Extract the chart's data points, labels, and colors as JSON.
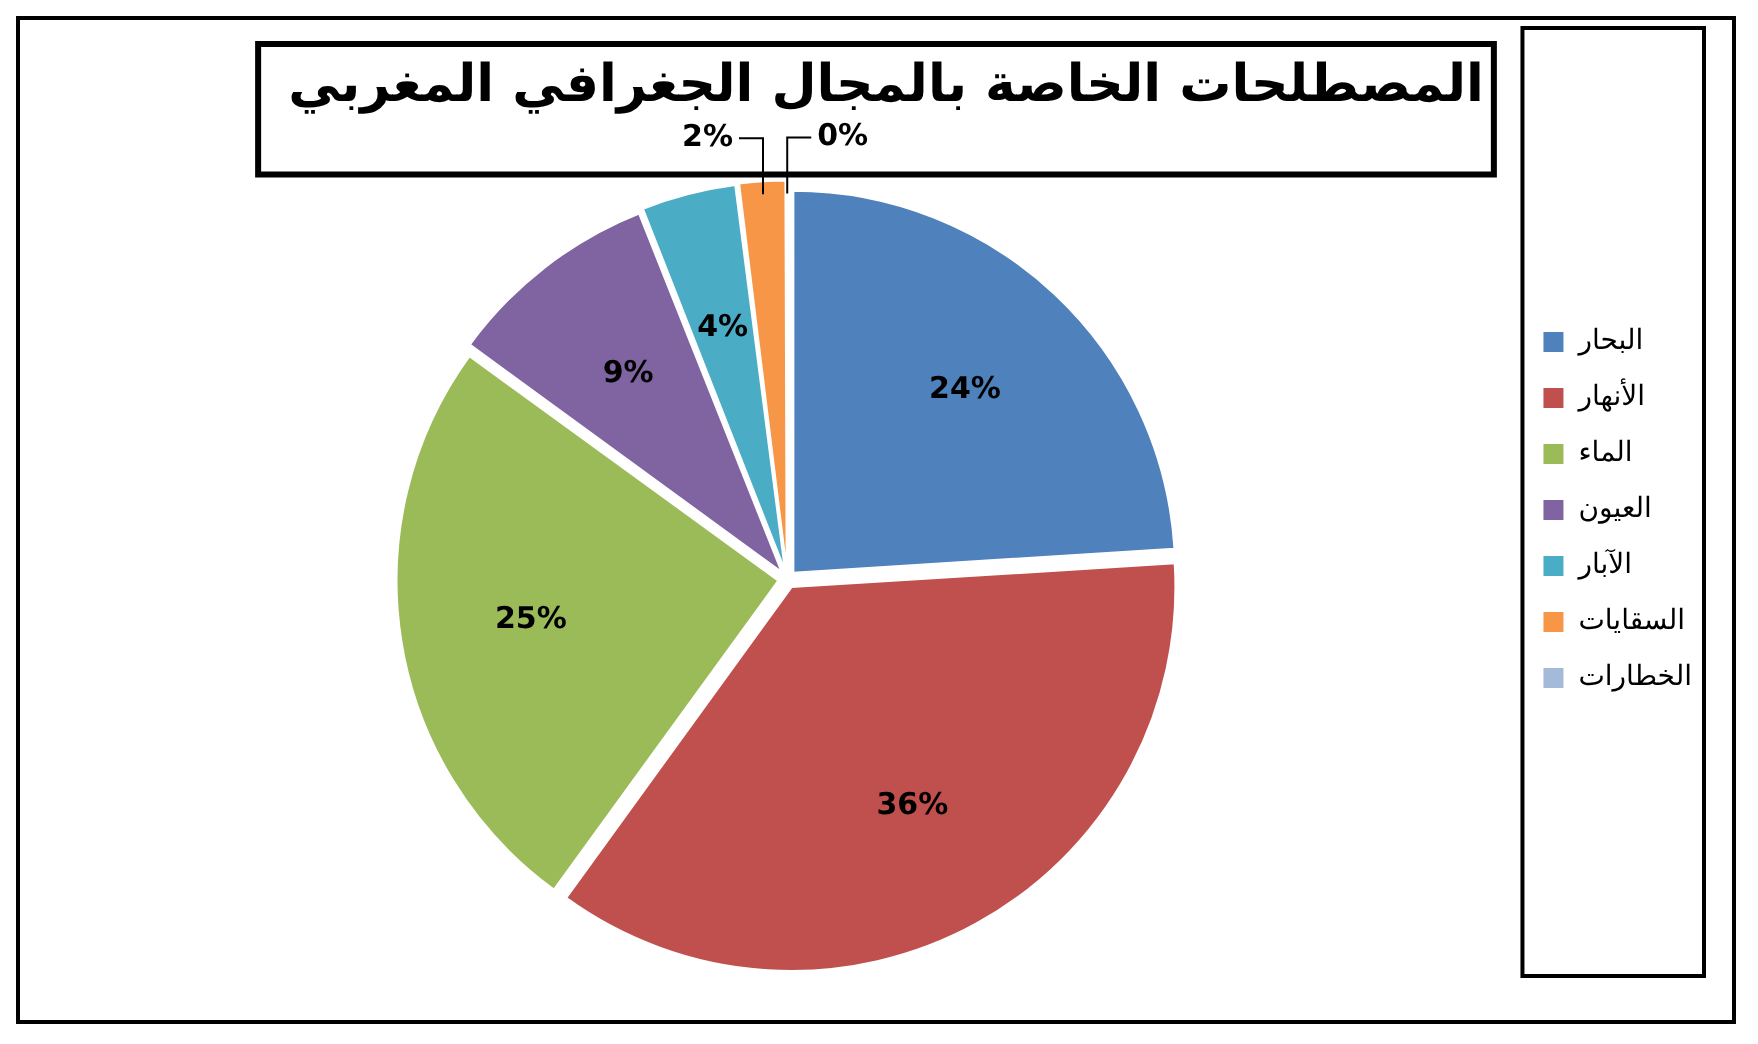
{
  "chart_data": {
    "type": "pie",
    "title": "المصطلحات الخاصة بالمجال الجغرافي المغربي",
    "categories": [
      "البحار",
      "الأنهار",
      "الماء",
      "العيون",
      "الآبار",
      "السقايات",
      "الخطارات"
    ],
    "values": [
      24,
      36,
      25,
      9,
      4,
      2,
      0
    ],
    "value_labels": [
      "24%",
      "36%",
      "25%",
      "9%",
      "4%",
      "2%",
      "0%"
    ],
    "colors": [
      "#4f81bd",
      "#c0504d",
      "#9bbb59",
      "#8064a2",
      "#4bacc6",
      "#f79646",
      "#a5b9d9"
    ],
    "legend": "right"
  }
}
